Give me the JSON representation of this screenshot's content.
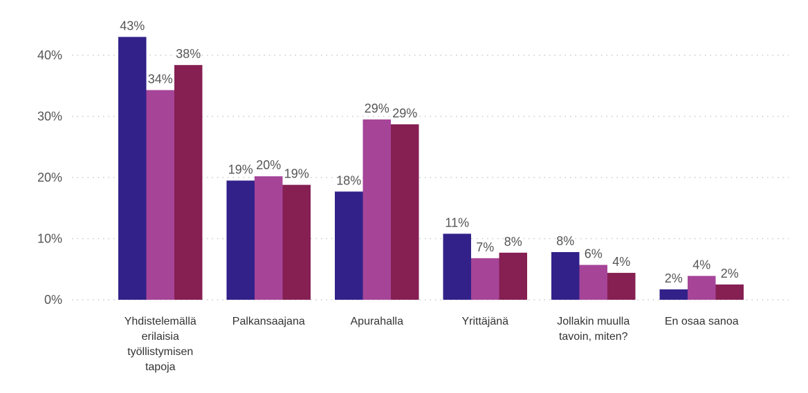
{
  "chart_data": {
    "type": "bar",
    "categories": [
      [
        "Yhdistelemällä",
        "erilaisia",
        "työllistymisen",
        "tapoja"
      ],
      [
        "Palkansaajana"
      ],
      [
        "Apurahalla"
      ],
      [
        "Yrittäjänä"
      ],
      [
        "Jollakin muulla",
        "tavoin, miten?"
      ],
      [
        "En osaa sanoa"
      ]
    ],
    "series": [
      {
        "values": [
          43,
          19.5,
          17.7,
          10.8,
          7.8,
          1.7
        ],
        "labels": [
          "43%",
          "19%",
          "18%",
          "11%",
          "8%",
          "2%"
        ],
        "color": "#33218a"
      },
      {
        "values": [
          34.3,
          20.2,
          29.5,
          6.8,
          5.7,
          3.9
        ],
        "labels": [
          "34%",
          "20%",
          "29%",
          "7%",
          "6%",
          "4%"
        ],
        "color": "#a64498"
      },
      {
        "values": [
          38.4,
          18.8,
          28.7,
          7.7,
          4.4,
          2.5
        ],
        "labels": [
          "38%",
          "19%",
          "29%",
          "8%",
          "4%",
          "2%"
        ],
        "color": "#861f52"
      }
    ],
    "yticks": [
      "0%",
      "10%",
      "20%",
      "30%",
      "40%"
    ],
    "ylim": [
      0,
      40
    ],
    "grid": true,
    "xlabel": "",
    "ylabel": ""
  }
}
